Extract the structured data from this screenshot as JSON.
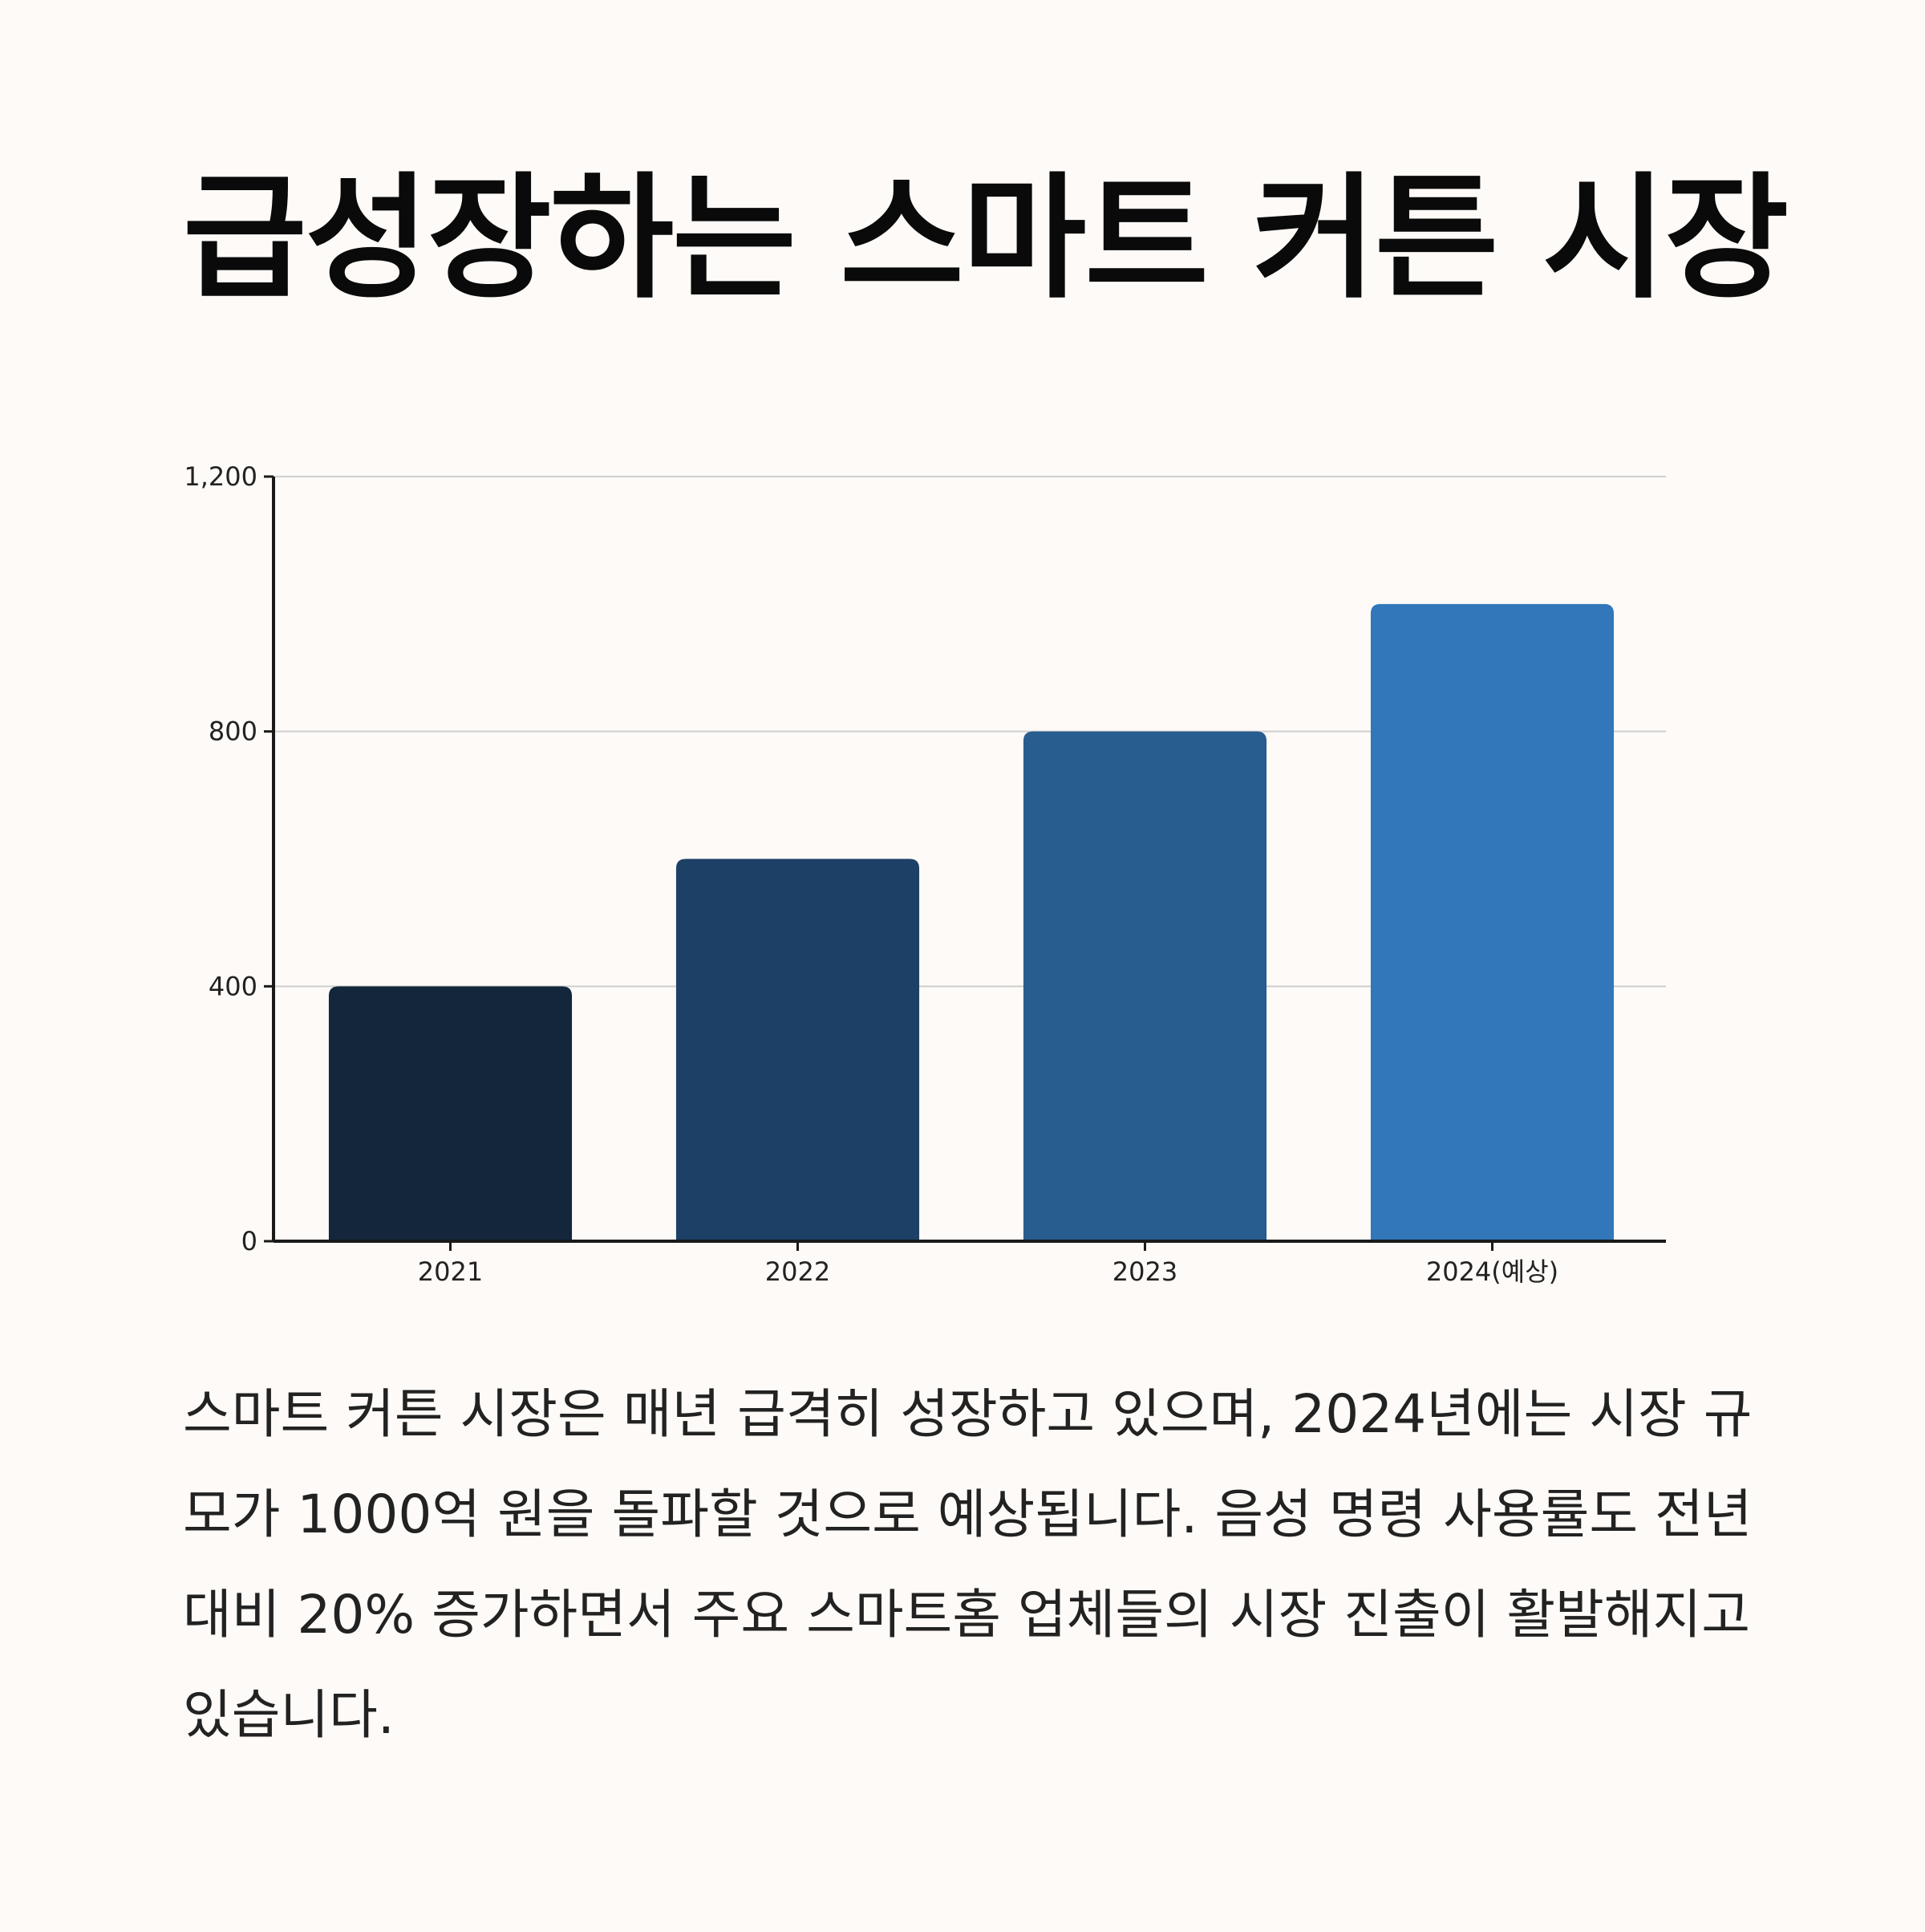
{
  "page": {
    "title": "급성장하는 스마트 커튼 시장",
    "description": "스마트 커튼 시장은 매년 급격히 성장하고 있으며, 2024년에는 시장 규모가 1000억 원을 돌파할 것으로 예상됩니다. 음성 명령 사용률도 전년 대비 20% 증가하면서 주요 스마트홈 업체들의 시장 진출이 활발해지고 있습니다."
  },
  "chart_data": {
    "type": "bar",
    "categories": [
      "2021",
      "2022",
      "2023",
      "2024(예상)"
    ],
    "values": [
      400,
      600,
      800,
      1000
    ],
    "colors": [
      "#13263c",
      "#1d4066",
      "#285d8f",
      "#3177ba"
    ],
    "title": "",
    "xlabel": "",
    "ylabel": "",
    "ylim": [
      0,
      1200
    ],
    "yticks": [
      0,
      400,
      800,
      1200
    ],
    "ytick_labels": [
      "0",
      "400",
      "800",
      "1,200"
    ],
    "grid": true,
    "legend": "none"
  }
}
